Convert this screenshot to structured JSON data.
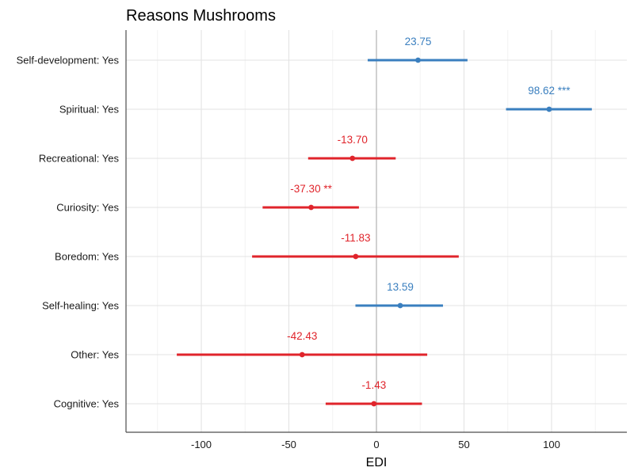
{
  "chart_data": {
    "type": "forest",
    "title": "Reasons Mushrooms",
    "xlabel": "EDI",
    "ylabel": "",
    "xlim": [
      -143,
      143
    ],
    "xticks": [
      -100,
      -50,
      0,
      50,
      100
    ],
    "xtick_labels": [
      "-100",
      "-50",
      "0",
      "50",
      "100"
    ],
    "grid": true,
    "colors": {
      "positive": "#3a7fbf",
      "negative": "#e0242b"
    },
    "rows": [
      {
        "label": "Self-development: Yes",
        "estimate": 23.75,
        "lower": -5,
        "upper": 52,
        "annotation": "23.75"
      },
      {
        "label": "Spiritual: Yes",
        "estimate": 98.62,
        "lower": 74,
        "upper": 123,
        "annotation": "98.62 ***"
      },
      {
        "label": "Recreational: Yes",
        "estimate": -13.7,
        "lower": -39,
        "upper": 11,
        "annotation": "-13.70"
      },
      {
        "label": "Curiosity: Yes",
        "estimate": -37.3,
        "lower": -65,
        "upper": -10,
        "annotation": "-37.30 **"
      },
      {
        "label": "Boredom: Yes",
        "estimate": -11.83,
        "lower": -71,
        "upper": 47,
        "annotation": "-11.83"
      },
      {
        "label": "Self-healing: Yes",
        "estimate": 13.59,
        "lower": -12,
        "upper": 38,
        "annotation": "13.59"
      },
      {
        "label": "Other: Yes",
        "estimate": -42.43,
        "lower": -114,
        "upper": 29,
        "annotation": "-42.43"
      },
      {
        "label": "Cognitive: Yes",
        "estimate": -1.43,
        "lower": -29,
        "upper": 26,
        "annotation": "-1.43"
      }
    ]
  }
}
